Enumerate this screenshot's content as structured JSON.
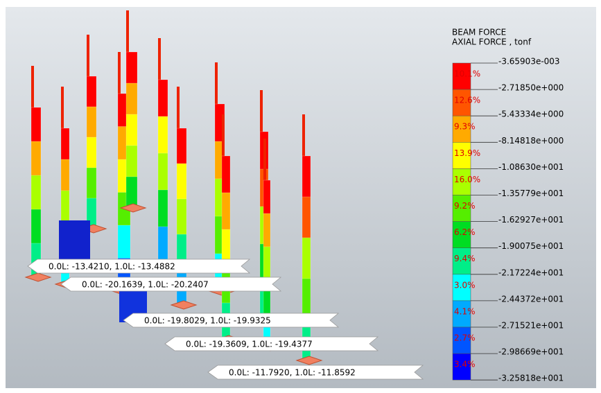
{
  "legend": {
    "title": "BEAM FORCE",
    "subtitle": "AXIAL FORCE , tonf",
    "levels": [
      "-3.65903e-003",
      "-2.71850e+000",
      "-5.43334e+000",
      "-8.14818e+000",
      "-1.08630e+001",
      "-1.35779e+001",
      "-1.62927e+001",
      "-1.90075e+001",
      "-2.17224e+001",
      "-2.44372e+001",
      "-2.71521e+001",
      "-2.98669e+001",
      "-3.25818e+001"
    ],
    "percents": [
      "10.1%",
      "12.6%",
      "9.3%",
      "13.9%",
      "16.0%",
      "9.2%",
      "6.2%",
      "9.4%",
      "3.0%",
      "4.1%",
      "2.7%",
      "3.4%"
    ]
  },
  "callouts": [
    "0.0L: -13.4210, 1.0L: -13.4882",
    "0.0L: -20.1639, 1.0L: -20.2407",
    "0.0L: -19.8029, 1.0L: -19.9325",
    "0.0L: -19.3609, 1.0L: -19.4377",
    "0.0L: -11.7920, 1.0L: -11.8592"
  ]
}
